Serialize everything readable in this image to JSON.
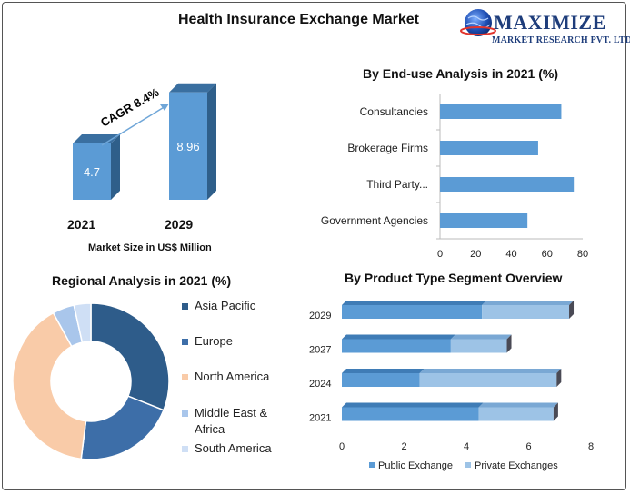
{
  "page": {
    "title": "Health Insurance Exchange Market"
  },
  "logo": {
    "brand": "MAXIMIZE",
    "tagline": "MARKET RESEARCH PVT. LTD."
  },
  "market_size": {
    "caption": "Market Size in US$ Million",
    "cagr_label": "CAGR 8.4%"
  },
  "end_use": {
    "title": "By End-use Analysis in 2021 (%)"
  },
  "regional": {
    "title": "Regional Analysis in 2021 (%)"
  },
  "product": {
    "title": "By Product Type Segment Overview"
  },
  "colors": {
    "bar_front": "#5b9bd5",
    "bar_side": "#2f5f8a",
    "bar_top": "#3a6fa0",
    "public": "#5b9bd5",
    "private": "#9dc3e6",
    "asia_pacific": "#2e5c8a",
    "europe": "#3d6ea8",
    "north_america": "#f9cba8",
    "middle_east_africa": "#a9c6eb",
    "south_america": "#cfdff5"
  },
  "chart_data": [
    {
      "type": "bar",
      "categories": [
        "2021",
        "2029"
      ],
      "values": [
        4.7,
        8.96
      ],
      "data_labels": [
        "4.7",
        "8.96"
      ],
      "xlabel": "Market Size in US$ Million",
      "annotation": "CAGR 8.4%"
    },
    {
      "type": "bar",
      "orientation": "horizontal",
      "title": "By End-use Analysis in 2021 (%)",
      "categories": [
        "Consultancies",
        "Brokerage Firms",
        "Third Party...",
        "Government Agencies"
      ],
      "values": [
        68,
        55,
        75,
        49
      ],
      "xlim": [
        0,
        80
      ],
      "xticks": [
        "0",
        "20",
        "40",
        "60",
        "80"
      ],
      "grid": false
    },
    {
      "type": "pie",
      "title": "Regional Analysis in 2021 (%)",
      "donut": true,
      "categories": [
        "Asia Pacific",
        "Europe",
        "North America",
        "Middle East & Africa",
        "South America"
      ],
      "values": [
        31,
        21,
        40,
        4.5,
        3.5
      ],
      "legend": "right"
    },
    {
      "type": "bar",
      "orientation": "horizontal",
      "stacked": true,
      "title": "By Product Type Segment Overview",
      "categories": [
        "2029",
        "2027",
        "2024",
        "2021"
      ],
      "series": [
        {
          "name": "Public Exchange",
          "values": [
            4.5,
            3.5,
            2.5,
            4.4
          ]
        },
        {
          "name": "Private Exchanges",
          "values": [
            2.8,
            1.8,
            4.4,
            2.4
          ]
        }
      ],
      "xlim": [
        0,
        8
      ],
      "xticks": [
        "0",
        "2",
        "4",
        "6",
        "8"
      ],
      "legend": "bottom"
    }
  ]
}
